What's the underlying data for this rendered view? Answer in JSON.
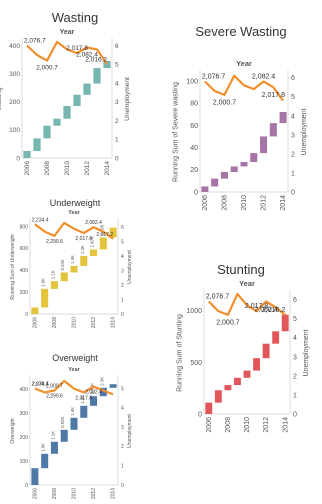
{
  "colors": {
    "line": "#f28e2b",
    "axis": "#cfcfcf"
  },
  "chart_data": [
    {
      "title": "Wasting",
      "type": "bar+line",
      "header": "Year",
      "ylabel": "Wasting",
      "ylabel_right": "Unemployment",
      "color": "#76b7b2",
      "categories": [
        2006,
        2007,
        2008,
        2009,
        2010,
        2011,
        2012,
        2013,
        2014
      ],
      "x_ticks": [
        "2006",
        "2008",
        "2010",
        "2012",
        "2014"
      ],
      "y_ticks": [
        "0",
        "100",
        "200",
        "300",
        "400"
      ],
      "y_ticks_right": [
        "0",
        "1",
        "2",
        "3",
        "4",
        "5",
        "6"
      ],
      "ylim": [
        0,
        420
      ],
      "ylim_right": [
        0,
        6.3
      ],
      "running_sum": [
        25,
        70,
        115,
        140,
        185,
        225,
        265,
        320,
        345
      ],
      "line": [
        6.0,
        5.5,
        5.2,
        6.2,
        5.8,
        5.6,
        5.9,
        5.8,
        5.0
      ],
      "line_labels": [
        "2,076.7",
        "2,000.7",
        "2,017.8",
        "2,082.4",
        "2,016.2"
      ],
      "line_label_points": [
        0,
        2,
        5,
        6,
        8
      ],
      "bar_labels": []
    },
    {
      "title": "Severe Wasting",
      "type": "bar+line",
      "header": "Year",
      "ylabel": "Running Sum of Severe wasting",
      "ylabel_right": "Unemployment",
      "color": "#a774a8",
      "categories": [
        2006,
        2007,
        2008,
        2009,
        2010,
        2011,
        2012,
        2013,
        2014
      ],
      "x_ticks": [
        "2006",
        "2008",
        "2010",
        "2012",
        "2014"
      ],
      "y_ticks": [
        "0",
        "20",
        "40",
        "60",
        "80",
        "100"
      ],
      "y_ticks_right": [
        "0",
        "1",
        "2",
        "3",
        "4",
        "5",
        "6"
      ],
      "ylim": [
        0,
        108
      ],
      "ylim_right": [
        0,
        6.3
      ],
      "running_sum": [
        5,
        12,
        18,
        23,
        27,
        35,
        50,
        62,
        72
      ],
      "line": [
        5.8,
        5.3,
        5.1,
        6.1,
        5.6,
        5.4,
        5.8,
        5.5,
        4.8
      ],
      "line_labels": [
        "2,076.7",
        "2,000.7",
        "2,082.4",
        "2,017.8"
      ],
      "line_label_points": [
        0,
        2,
        6,
        7
      ],
      "bar_labels": []
    },
    {
      "title": "Underweight",
      "type": "bar+line",
      "header": "Year",
      "ylabel": "Running Sum of Underweight",
      "ylabel_right": "Unemployment",
      "color": "#e3c43c",
      "categories": [
        2006,
        2007,
        2008,
        2009,
        2010,
        2011,
        2012,
        2013,
        2014
      ],
      "x_ticks": [
        "2006",
        "2008",
        "2010",
        "2012",
        "2014"
      ],
      "y_ticks": [
        "0",
        "200",
        "400",
        "600",
        "800"
      ],
      "y_ticks_right": [
        "0",
        "1",
        "2",
        "3",
        "4",
        "5",
        "6"
      ],
      "ylim": [
        0,
        860
      ],
      "ylim_right": [
        0,
        6.5
      ],
      "running_sum": [
        60,
        230,
        300,
        380,
        440,
        530,
        590,
        700,
        790
      ],
      "line": [
        6.2,
        5.7,
        5.4,
        6.3,
        5.9,
        5.6,
        6.0,
        5.7,
        5.2
      ],
      "line_labels": [
        "2,234.4",
        "2,299.6",
        "2,082.4",
        "2,017.6",
        "2,017.2"
      ],
      "line_label_points": [
        0,
        2,
        6,
        5,
        8
      ],
      "bar_labels": [
        "1.0K",
        "1.1K",
        "0.93K",
        "1.4K",
        "1.4K",
        "2.42K",
        "2.39K"
      ]
    },
    {
      "title": "Stunting",
      "type": "bar+line",
      "header": "Year",
      "ylabel": "Running Sum of Stunting",
      "ylabel_right": "Unemployment",
      "color": "#e15759",
      "categories": [
        2006,
        2007,
        2008,
        2009,
        2010,
        2011,
        2012,
        2013,
        2014
      ],
      "x_ticks": [
        "2006",
        "2008",
        "2010",
        "2012",
        "2014"
      ],
      "y_ticks": [
        "0",
        "500",
        "1000"
      ],
      "y_ticks_right": [
        "0",
        "1",
        "2",
        "3",
        "4",
        "5",
        "6"
      ],
      "ylim": [
        0,
        1180
      ],
      "ylim_right": [
        0,
        6.4
      ],
      "running_sum": [
        110,
        230,
        280,
        350,
        420,
        540,
        680,
        800,
        960
      ],
      "line": [
        5.9,
        5.4,
        5.2,
        6.3,
        5.7,
        5.4,
        5.9,
        5.6,
        5.2
      ],
      "line_labels": [
        "2,076.7",
        "2,000.7",
        "2,017.8",
        "2,082.4",
        "2,016.2"
      ],
      "line_label_points": [
        0,
        2,
        5,
        6,
        8
      ],
      "bar_labels": []
    },
    {
      "title": "Overweight",
      "type": "bar+line",
      "header": "Year",
      "ylabel": "Overweight",
      "ylabel_right": "Unemployment",
      "color": "#4e79a7",
      "categories": [
        2006,
        2007,
        2008,
        2009,
        2010,
        2011,
        2012,
        2013,
        2014
      ],
      "x_ticks": [
        "2006",
        "2008",
        "2010",
        "2012",
        "2014"
      ],
      "y_ticks": [
        "0",
        "100",
        "200",
        "300",
        "400"
      ],
      "y_ticks_right": [
        "0",
        "1",
        "2",
        "3",
        "4",
        "5"
      ],
      "ylim": [
        0,
        450
      ],
      "ylim_right": [
        0,
        5.6
      ],
      "running_sum": [
        70,
        130,
        180,
        230,
        280,
        330,
        370,
        405,
        420
      ],
      "line": [
        5.0,
        4.8,
        4.9,
        5.4,
        5.0,
        4.8,
        5.1,
        4.9,
        4.7
      ],
      "line_labels": [
        "2,234.4",
        "2,299.6",
        "2,000.7",
        "2,017.8",
        "2,076.7",
        "2,082.4"
      ],
      "line_label_points": [
        0,
        2,
        2,
        5,
        0,
        6
      ],
      "bar_labels": [
        "1.0K",
        "1.1K",
        "0.93K",
        "1.4K",
        "1.4K",
        "2.42K",
        "2.3K"
      ]
    }
  ]
}
